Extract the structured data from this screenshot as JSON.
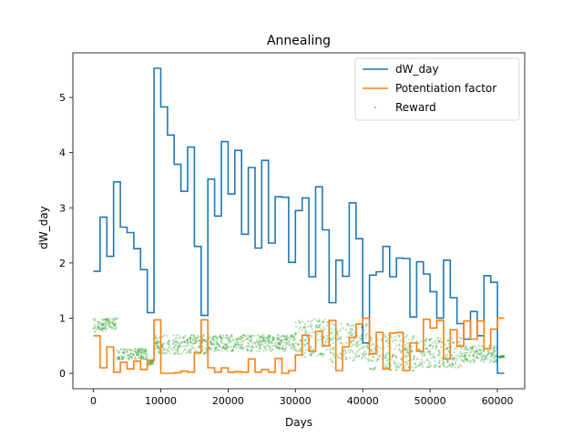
{
  "chart_data": {
    "type": "line",
    "title": "Annealing",
    "xlabel": "Days",
    "ylabel": "dW_day",
    "xlim": [
      -3050,
      64050
    ],
    "ylim": [
      -0.28,
      5.81
    ],
    "xticks": [
      0,
      10000,
      20000,
      30000,
      40000,
      50000,
      60000
    ],
    "yticks": [
      0,
      1,
      2,
      3,
      4,
      5
    ],
    "legend_position": "top-right",
    "grid": false,
    "series": [
      {
        "name": "dW_day",
        "color": "#1f77b4",
        "kind": "step",
        "x": [
          0,
          1000,
          2000,
          3000,
          4000,
          5000,
          6000,
          7000,
          8000,
          9000,
          10000,
          11000,
          12000,
          13000,
          14000,
          15000,
          16000,
          17000,
          18000,
          19000,
          20000,
          21000,
          22000,
          23000,
          24000,
          25000,
          26000,
          27000,
          28000,
          29000,
          30000,
          31000,
          32000,
          33000,
          34000,
          35000,
          36000,
          37000,
          38000,
          39000,
          40000,
          41000,
          42000,
          43000,
          44000,
          45000,
          46000,
          47000,
          48000,
          49000,
          50000,
          51000,
          52000,
          53000,
          54000,
          55000,
          56000,
          57000,
          58000,
          59000,
          60000,
          61000
        ],
        "y": [
          1.85,
          2.83,
          2.12,
          3.47,
          2.65,
          2.55,
          2.26,
          1.88,
          1.1,
          5.53,
          4.83,
          4.32,
          3.79,
          3.3,
          4.1,
          2.3,
          1.05,
          3.52,
          2.85,
          4.2,
          3.25,
          4.04,
          2.52,
          3.73,
          2.27,
          3.86,
          2.36,
          3.2,
          3.19,
          2.01,
          2.95,
          3.18,
          1.75,
          3.38,
          2.6,
          1.28,
          2.05,
          1.76,
          3.09,
          2.44,
          0.55,
          1.78,
          1.84,
          2.3,
          1.75,
          2.09,
          2.08,
          1.02,
          2.02,
          1.8,
          1.48,
          1.0,
          2.05,
          1.37,
          0.9,
          0.62,
          1.12,
          0.68,
          1.77,
          1.65,
          0.0,
          0.0
        ]
      },
      {
        "name": "Potentiation factor",
        "color": "#ff7f0e",
        "kind": "step",
        "x": [
          0,
          1000,
          2000,
          3000,
          4000,
          5000,
          6000,
          7000,
          8000,
          9000,
          10000,
          11000,
          12000,
          13000,
          14000,
          15000,
          16000,
          17000,
          18000,
          19000,
          20000,
          21000,
          22000,
          23000,
          24000,
          25000,
          26000,
          27000,
          28000,
          29000,
          30000,
          31000,
          32000,
          33000,
          34000,
          35000,
          36000,
          37000,
          38000,
          39000,
          40000,
          41000,
          42000,
          43000,
          44000,
          45000,
          46000,
          47000,
          48000,
          49000,
          50000,
          51000,
          52000,
          53000,
          54000,
          55000,
          56000,
          57000,
          58000,
          59000,
          60000,
          61000
        ],
        "y": [
          0.68,
          0.1,
          0.48,
          0.02,
          0.2,
          0.08,
          0.22,
          0.07,
          0.24,
          0.97,
          0.0,
          0.0,
          0.01,
          0.04,
          0.02,
          0.38,
          0.97,
          0.1,
          0.02,
          0.1,
          0.02,
          0.03,
          0.02,
          0.26,
          0.02,
          0.07,
          0.02,
          0.27,
          0.0,
          0.05,
          0.33,
          0.69,
          0.4,
          0.76,
          0.5,
          0.96,
          0.05,
          0.48,
          0.65,
          0.89,
          1.0,
          0.35,
          0.74,
          0.08,
          0.73,
          0.74,
          0.05,
          0.55,
          0.4,
          0.98,
          0.82,
          0.96,
          0.26,
          0.79,
          0.49,
          0.95,
          0.62,
          0.95,
          0.45,
          0.8,
          1.0,
          1.0
        ]
      },
      {
        "name": "Reward",
        "color": "#2ca02c",
        "kind": "scatter-band",
        "segments": [
          {
            "x0": 0,
            "x1": 2000,
            "lo": 0.75,
            "hi": 1.0
          },
          {
            "x0": 2000,
            "x1": 3500,
            "lo": 0.8,
            "hi": 1.0
          },
          {
            "x0": 3500,
            "x1": 8000,
            "lo": 0.25,
            "hi": 0.45
          },
          {
            "x0": 8000,
            "x1": 9000,
            "lo": 0.15,
            "hi": 0.25
          },
          {
            "x0": 9000,
            "x1": 17000,
            "lo": 0.35,
            "hi": 0.7
          },
          {
            "x0": 17000,
            "x1": 30000,
            "lo": 0.4,
            "hi": 0.7
          },
          {
            "x0": 30000,
            "x1": 35000,
            "lo": 0.3,
            "hi": 1.0
          },
          {
            "x0": 35000,
            "x1": 41000,
            "lo": 0.2,
            "hi": 0.9
          },
          {
            "x0": 41000,
            "x1": 48000,
            "lo": 0.05,
            "hi": 0.7
          },
          {
            "x0": 48000,
            "x1": 55000,
            "lo": 0.1,
            "hi": 0.65
          },
          {
            "x0": 55000,
            "x1": 60000,
            "lo": 0.2,
            "hi": 0.5
          },
          {
            "x0": 60000,
            "x1": 61000,
            "lo": 0.28,
            "hi": 0.32
          }
        ]
      }
    ]
  }
}
